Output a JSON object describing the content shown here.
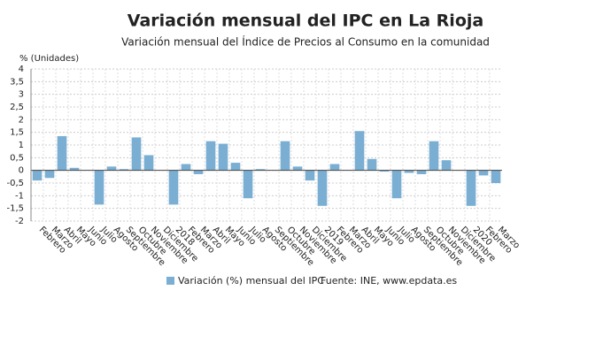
{
  "chart_data": {
    "type": "bar",
    "title": "Variación mensual del IPC en La Rioja",
    "subtitle": "Variación mensual del Índice de Precios al Consumo en la comunidad",
    "y_axis_label": "% (Unidades)",
    "source": "Fuente: INE, www.epdata.es",
    "categories": [
      "Febrero",
      "Marzo",
      "Abril",
      "Mayo",
      "Junio",
      "Julio",
      "Agosto",
      "Septiembre",
      "Octubre",
      "Noviembre",
      "Diciembre",
      "2018",
      "Febrero",
      "Marzo",
      "Abril",
      "Mayo",
      "Junio",
      "Julio",
      "Agosto",
      "Septiembre",
      "Octubre",
      "Noviembre",
      "Diciembre",
      "2019",
      "Febrero",
      "Marzo",
      "Abril",
      "Mayo",
      "Junio",
      "Julio",
      "Agosto",
      "Septiembre",
      "Octubre",
      "Noviembre",
      "Diciembre",
      "2020",
      "Febrero",
      "Marzo"
    ],
    "series": [
      {
        "name": "Variación (%) mensual del IPC",
        "color": "#7aaed3",
        "values": [
          -0.4,
          -0.3,
          1.35,
          0.1,
          0.0,
          -1.35,
          0.15,
          0.05,
          1.3,
          0.6,
          0.0,
          -1.35,
          0.25,
          -0.15,
          1.15,
          1.05,
          0.3,
          -1.1,
          0.05,
          0.0,
          1.15,
          0.15,
          -0.4,
          -1.4,
          0.25,
          0.0,
          1.55,
          0.45,
          -0.05,
          -1.1,
          -0.1,
          -0.15,
          1.15,
          0.4,
          0.0,
          -1.4,
          -0.2,
          -0.5
        ]
      }
    ],
    "ylim": [
      -2,
      4
    ],
    "yticks": [
      -2,
      {
        "value": -1.5,
        "label": "-1,5"
      },
      -1,
      {
        "value": -0.5,
        "label": "-0,5"
      },
      0,
      {
        "value": 0.5,
        "label": "0,5"
      },
      1,
      {
        "value": 1.5,
        "label": "1,5"
      },
      2,
      {
        "value": 2.5,
        "label": "2,5"
      },
      3,
      {
        "value": 3.5,
        "label": "3,5"
      },
      4
    ],
    "grid": true
  }
}
